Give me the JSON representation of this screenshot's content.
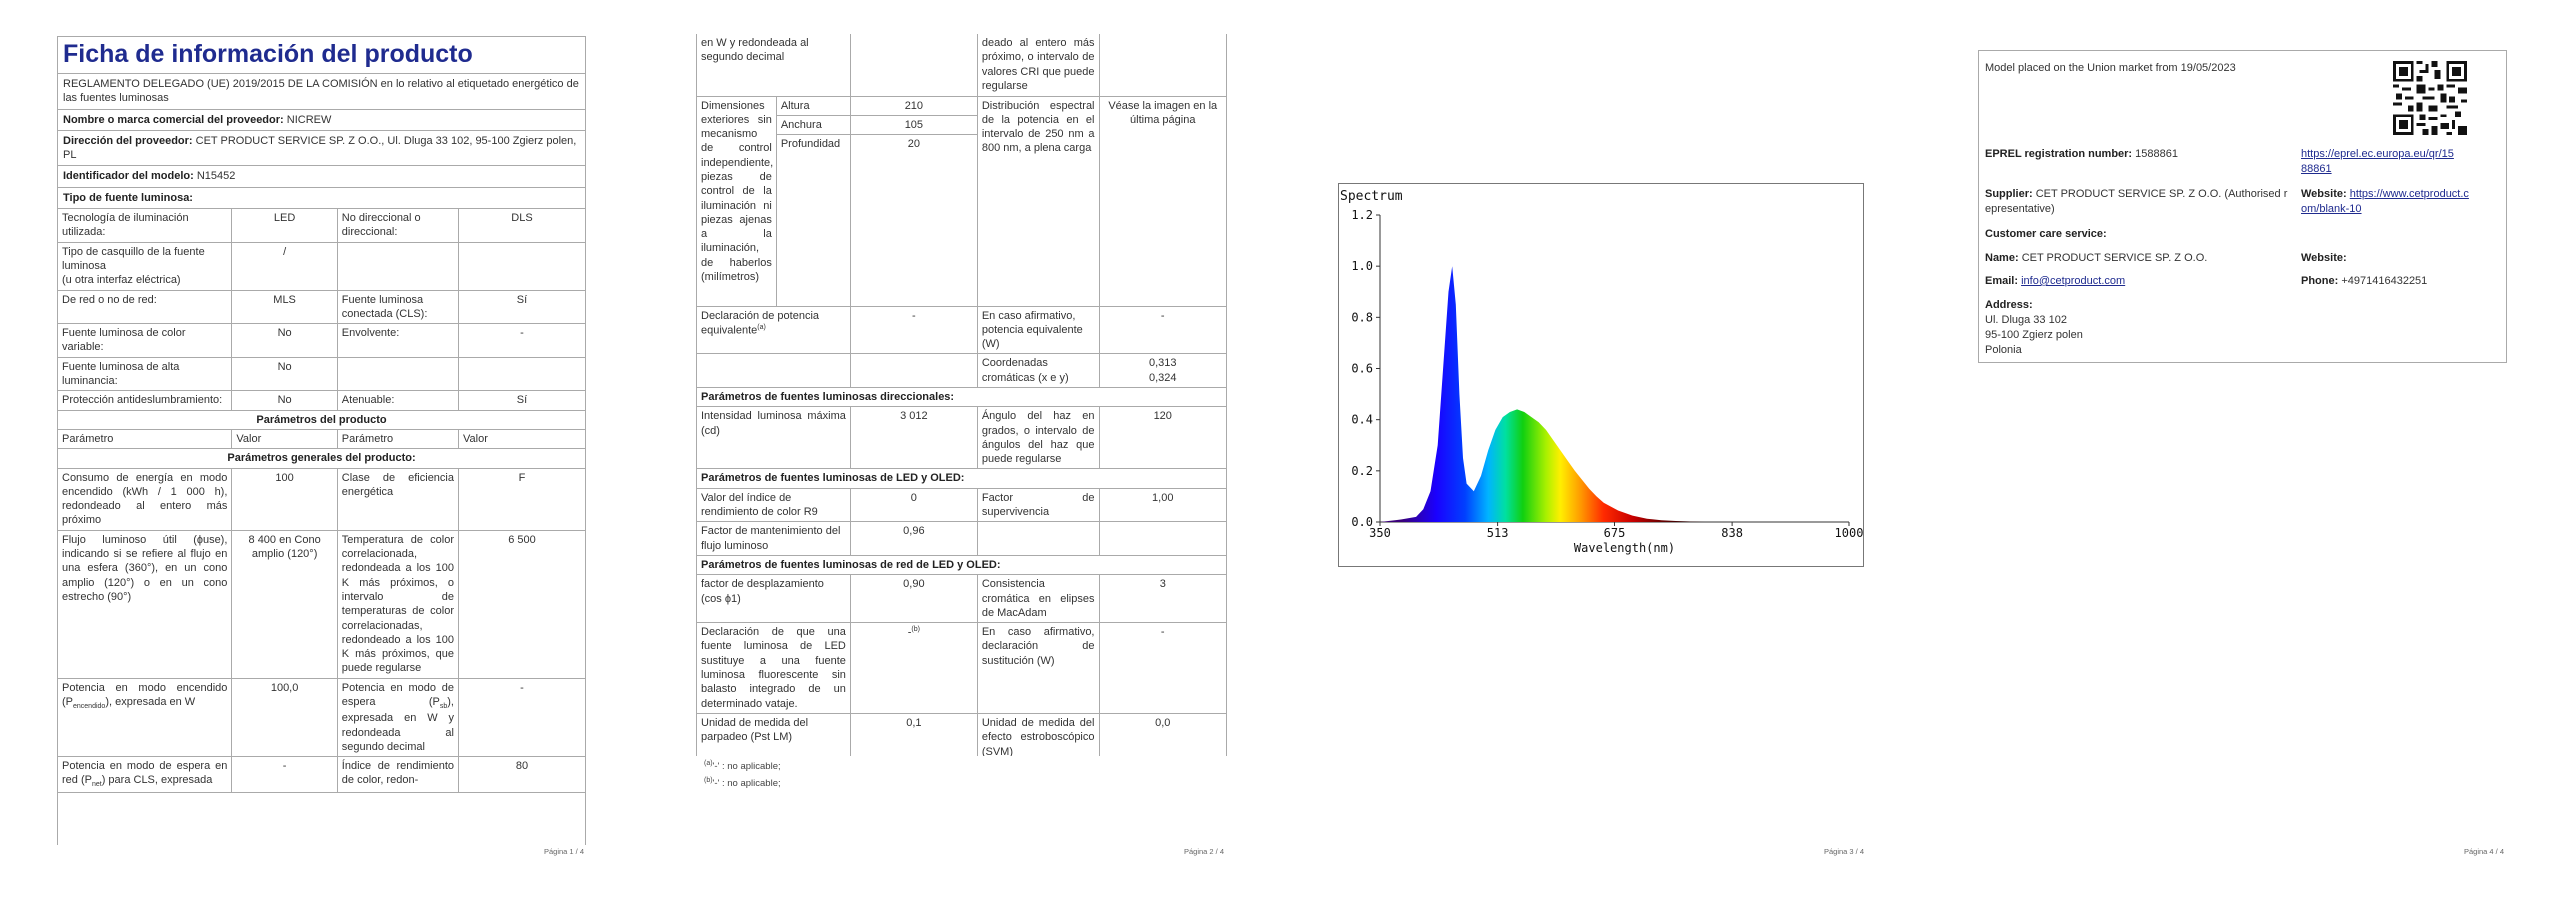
{
  "page1": {
    "title": "Ficha de información del producto",
    "regulation": "REGLAMENTO DELEGADO (UE) 2019/2015 DE LA COMISIÓN en lo relativo al etiquetado energético de las fuentes luminosas",
    "supplier_name_label": "Nombre o marca comercial del proveedor:",
    "supplier_name": "NICREW",
    "supplier_address_label": "Dirección del proveedor:",
    "supplier_address": "CET PRODUCT SERVICE SP. Z O.O., Ul. Dluga 33 102, 95-100 Zgierz polen, PL",
    "model_id_label": "Identificador del modelo:",
    "model_id": "N15452",
    "light_source_type": "Tipo de fuente luminosa:",
    "r1c1": "Tecnología de iluminación utilizada:",
    "r1c2": "LED",
    "r1c3": "No direccional o direccional:",
    "r1c4": "DLS",
    "r2c1a": "Tipo de casquillo de la fuente luminosa",
    "r2c1b": "(u otra interfaz eléctrica)",
    "r2c2": "/",
    "r3c1": "De red o no de red:",
    "r3c2": "MLS",
    "r3c3": "Fuente luminosa conectada (CLS):",
    "r3c4": "Sí",
    "r4c1": "Fuente luminosa de color variable:",
    "r4c2": "No",
    "r4c3": "Envolvente:",
    "r4c4": "-",
    "r5c1": "Fuente luminosa de alta luminancia:",
    "r5c2": "No",
    "r6c1": "Protección antideslumbramiento:",
    "r6c2": "No",
    "r6c3": "Atenuable:",
    "r6c4": "Sí",
    "params_header": "Parámetros del producto",
    "col_param": "Parámetro",
    "col_value": "Valor",
    "col_param2": "Parámetro",
    "col_value2": "Valor",
    "general_params": "Parámetros generales del producto:",
    "g1c1": "Consumo de energía en modo encendido (kWh / 1 000 h), redondeado al entero más próximo",
    "g1c2": "100",
    "g1c3": "Clase de eficiencia energética",
    "g1c4": "F",
    "g2c1": "Flujo luminoso útil (ɸuse), indicando si se refiere al flujo en una esfera (360°), en un cono amplio (120°) o en un cono estrecho (90°)",
    "g2c2": "8 400 en Cono amplio (120°)",
    "g2c3": "Temperatura de color correlacionada, redondeada a los 100 K más próximos, o intervalo de temperaturas de color correlacionadas, redondeado a los 100 K más próximos, que puede regularse",
    "g2c4": "6 500",
    "g3c1a": "Potencia en modo encendido (P",
    "g3c1sub": "encendido",
    "g3c1b": "), expresada en W",
    "g3c2": "100,0",
    "g3c3a": "Potencia en modo de espera (P",
    "g3c3sub": "sb",
    "g3c3b": "), expresada en W y redondeada al segundo decimal",
    "g3c4": "-",
    "g4c1a": "Potencia en modo de espera en red (P",
    "g4c1sub": "net",
    "g4c1b": ") para CLS, expresada",
    "g4c2": "-",
    "g4c3": "Índice de rendimiento de color, redon-",
    "g4c4": "80",
    "page_num": "Página 1 / 4"
  },
  "page2": {
    "cont_c1": "en W y redondeada al segundo decimal",
    "cont_c3": "deado al entero más próximo, o intervalo de valores CRI que puede regularse",
    "dims_label": "Dimensiones exteriores sin mecanismo de control independiente, piezas de control de la iluminación ni piezas ajenas a la iluminación, de haberlos (milímetros)",
    "height_label": "Altura",
    "height": "210",
    "width_label": "Anchura",
    "width": "105",
    "depth_label": "Profundidad",
    "depth": "20",
    "spectral_label": "Distribución espectral de la potencia en el intervalo de 250 nm a 800 nm, a plena carga",
    "spectral_value": "Véase la imagen en la última página",
    "equiv_label": "Declaración de potencia equivalente",
    "equiv_sup": "(a)",
    "equiv_value": "-",
    "equiv_if_label": "En caso afirmativo, potencia equivalente (W)",
    "equiv_if_value": "-",
    "chroma_label": "Coordenadas cromáticas (x e y)",
    "chroma_x": "0,313",
    "chroma_y": "0,324",
    "dir_header": "Parámetros de fuentes luminosas direccionales:",
    "intensity_label": "Intensidad luminosa máxima (cd)",
    "intensity": "3 012",
    "beam_label": "Ángulo del haz en grados, o intervalo de ángulos del haz que puede regularse",
    "beam": "120",
    "led_header": "Parámetros de fuentes luminosas de LED y OLED:",
    "r9_label": "Valor del índice de rendimiento de color R9",
    "r9": "0",
    "surv_label": "Factor de supervivencia",
    "surv": "1,00",
    "maint_label": "Factor de mantenimiento del flujo luminoso",
    "maint": "0,96",
    "mains_header": "Parámetros de fuentes luminosas de red de LED y OLED:",
    "disp_label": "factor de desplazamiento (cos ϕ1)",
    "disp": "0,90",
    "macadam_label": "Consistencia cromática en elipses de MacAdam",
    "macadam": "3",
    "replace_label": "Declaración de que una fuente luminosa de LED sustituye a una fuente luminosa fluorescente sin balasto integrado de un determinado vataje.",
    "replace_value": "-",
    "replace_sup": "(b)",
    "replace_if_label": "En caso afirmativo, declaración de sustitución (W)",
    "replace_if_value": "-",
    "flicker_label": "Unidad de medida del parpadeo (Pst LM)",
    "flicker": "0,1",
    "strobo_label": "Unidad de medida del efecto estroboscópico (SVM)",
    "strobo": "0,0",
    "note_a_sup": "(a)",
    "note_a": "'-' : no aplicable;",
    "note_b_sup": "(b)",
    "note_b": "'-' : no aplicable;",
    "page_num": "Página 2 / 4"
  },
  "chart_data": {
    "type": "area",
    "title": "Spectrum",
    "xlabel": "Wavelength(nm)",
    "ylabel": "",
    "xlim": [
      350,
      1000
    ],
    "ylim": [
      0,
      1.2
    ],
    "xticks": [
      "350",
      "513",
      "675",
      "838",
      "1000"
    ],
    "yticks": [
      "0.0",
      "0.2",
      "0.4",
      "0.6",
      "0.8",
      "1.0",
      "1.2"
    ],
    "x": [
      350,
      380,
      400,
      410,
      420,
      430,
      440,
      445,
      450,
      455,
      460,
      465,
      470,
      480,
      490,
      500,
      510,
      520,
      530,
      540,
      550,
      560,
      570,
      580,
      590,
      600,
      610,
      620,
      630,
      640,
      650,
      660,
      680,
      700,
      720,
      740,
      760,
      780,
      800
    ],
    "series": [
      {
        "values": [
          0.0,
          0.01,
          0.02,
          0.05,
          0.12,
          0.3,
          0.7,
          0.9,
          1.0,
          0.85,
          0.5,
          0.25,
          0.15,
          0.12,
          0.18,
          0.28,
          0.36,
          0.41,
          0.43,
          0.44,
          0.43,
          0.41,
          0.39,
          0.36,
          0.32,
          0.28,
          0.24,
          0.2,
          0.165,
          0.13,
          0.1,
          0.075,
          0.045,
          0.025,
          0.013,
          0.007,
          0.004,
          0.002,
          0.0
        ]
      }
    ],
    "grid": false
  },
  "page3": {
    "page_num": "Página 3 / 4"
  },
  "page4": {
    "placed_on_market": "Model placed on the Union market from 19/05/2023",
    "eprel_label": "EPREL registration number:",
    "eprel_value": "1588861",
    "eprel_link_1": "https://eprel.ec.europa.eu/qr/15",
    "eprel_link_2": "88861",
    "supplier_label": "Supplier:",
    "supplier_value_1": "CET PRODUCT SERVICE SP. Z O.O. (Authorised r",
    "supplier_value_2": "epresentative)",
    "website_label": "Website:",
    "website_link_1": "https://www.cetproduct.c",
    "website_link_2": "om/blank-10",
    "customer_care": "Customer care service:",
    "name_label": "Name:",
    "name_value": "CET PRODUCT SERVICE SP. Z O.O.",
    "website2_label": "Website:",
    "email_label": "Email:",
    "email_value": "info@cetproduct.com",
    "phone_label": "Phone:",
    "phone_value": "+4971416432251",
    "address_label": "Address:",
    "address_1": "Ul. Dluga 33 102",
    "address_2": "95-100 Zgierz polen",
    "address_3": "Polonia",
    "page_num": "Página 4 / 4"
  },
  "colors": {
    "title": "#1f2b8f",
    "link": "#1f2b8f",
    "border": "#aaaaaa"
  }
}
